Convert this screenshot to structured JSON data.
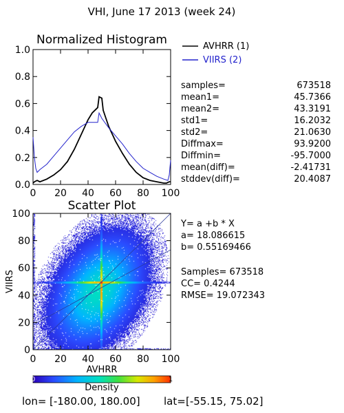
{
  "title": "VHI,  June 17 2013 (week 24)",
  "histogram": {
    "title": "Normalized Histogram",
    "legend": [
      {
        "label": "AVHRR (1)",
        "color": "#000000"
      },
      {
        "label": "VIIRS (2)",
        "color": "#2222cc"
      }
    ],
    "x_ticks": [
      "0",
      "20",
      "40",
      "60",
      "80",
      "100"
    ],
    "y_ticks": [
      "0.0",
      "0.2",
      "0.4",
      "0.6",
      "0.8",
      "1.0"
    ]
  },
  "stats": [
    {
      "label": "samples=",
      "value": "673518"
    },
    {
      "label": "mean1=",
      "value": "45.7366"
    },
    {
      "label": "mean2=",
      "value": "43.3191"
    },
    {
      "label": "std1=",
      "value": "16.2032"
    },
    {
      "label": "std2=",
      "value": "21.0630"
    },
    {
      "label": "Diffmax=",
      "value": "93.9200"
    },
    {
      "label": "Diffmin=",
      "value": "-95.7000"
    },
    {
      "label": "mean(diff)=",
      "value": "-2.41731"
    },
    {
      "label": "stddev(diff)=",
      "value": "20.4087"
    }
  ],
  "scatter": {
    "title": "Scatter Plot",
    "xlabel": "AVHRR",
    "ylabel": "VIIRS",
    "x_ticks": [
      "0",
      "20",
      "40",
      "60",
      "80",
      "100"
    ],
    "y_ticks": [
      "0",
      "20",
      "40",
      "60",
      "80",
      "100"
    ]
  },
  "regression": {
    "equation": "Y= a +b * X",
    "a_line": "a= 18.086615",
    "b_line": "b= 0.55169466",
    "samples_line": "Samples= 673518",
    "cc_line": "CC=  0.4244",
    "rmse_line": "RMSE= 19.072343"
  },
  "colorbar": {
    "label": "Density",
    "min_label": "0",
    "max_label": "1"
  },
  "footer": {
    "lon_label": "lon=",
    "lon_range": "[-180.00, 180.00]",
    "lat_label": "lat=",
    "lat_range": "[-55.15, 75.02]"
  },
  "chart_data": [
    {
      "type": "line",
      "title": "Normalized Histogram",
      "xlim": [
        0,
        100
      ],
      "ylim": [
        0,
        1
      ],
      "series": [
        {
          "name": "AVHRR (1)",
          "color": "#000000",
          "x": [
            0,
            1,
            3,
            5,
            10,
            15,
            20,
            25,
            30,
            35,
            40,
            43,
            45,
            47,
            48,
            50,
            51,
            53,
            55,
            60,
            65,
            70,
            75,
            80,
            85,
            90,
            95,
            97,
            99,
            100
          ],
          "y": [
            0.01,
            0.02,
            0.03,
            0.02,
            0.04,
            0.07,
            0.11,
            0.17,
            0.26,
            0.37,
            0.48,
            0.53,
            0.55,
            0.57,
            0.65,
            0.64,
            0.55,
            0.49,
            0.43,
            0.32,
            0.23,
            0.15,
            0.09,
            0.05,
            0.03,
            0.02,
            0.01,
            0.01,
            0.02,
            0.02
          ]
        },
        {
          "name": "VIIRS (2)",
          "color": "#2222cc",
          "x": [
            0,
            1,
            2,
            3,
            5,
            10,
            15,
            20,
            25,
            30,
            35,
            40,
            45,
            47,
            48,
            49,
            50,
            55,
            60,
            65,
            70,
            75,
            80,
            85,
            90,
            95,
            98,
            99,
            100
          ],
          "y": [
            0.35,
            0.2,
            0.12,
            0.09,
            0.11,
            0.15,
            0.21,
            0.27,
            0.33,
            0.39,
            0.43,
            0.46,
            0.46,
            0.46,
            0.53,
            0.51,
            0.49,
            0.42,
            0.36,
            0.3,
            0.23,
            0.17,
            0.12,
            0.09,
            0.06,
            0.04,
            0.03,
            0.07,
            0.18
          ]
        }
      ]
    },
    {
      "type": "scatter",
      "title": "Scatter Plot",
      "xlabel": "AVHRR",
      "ylabel": "VIIRS",
      "xlim": [
        0,
        100
      ],
      "ylim": [
        0,
        100
      ],
      "density_center": [
        47,
        43
      ],
      "regression": {
        "a": 18.086615,
        "b": 0.55169466
      },
      "colormap": "rainbow density 0-1"
    }
  ]
}
